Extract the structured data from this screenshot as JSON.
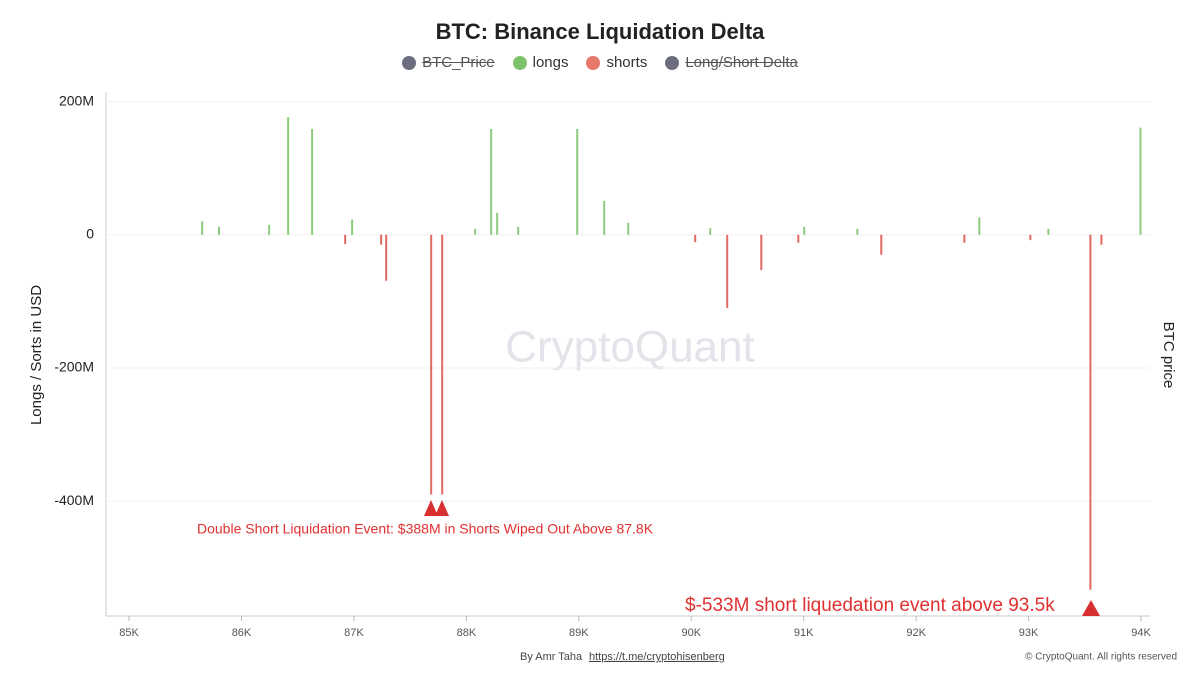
{
  "chart_data": {
    "type": "bar",
    "title": "BTC: Binance Liquidation Delta",
    "y_label": "Longs / Sorts in USD",
    "y2_label": "BTC price",
    "watermark": "CryptoQuant",
    "legend": [
      {
        "name": "BTC_Price",
        "color": "#6c6e80",
        "hidden": true
      },
      {
        "name": "longs",
        "color": "#7dc36b",
        "hidden": false
      },
      {
        "name": "shorts",
        "color": "#e8776c",
        "hidden": false
      },
      {
        "name": "Long/Short Delta",
        "color": "#6c6e80",
        "hidden": true
      }
    ],
    "series": [
      {
        "name": "longs",
        "color": "#8ccb7c",
        "x": [
          86415,
          86628,
          88221,
          88986,
          93995,
          89226,
          88274,
          85650,
          86984,
          92562,
          89440,
          86246,
          85800,
          88461,
          91477,
          91005,
          93176,
          90169,
          88078
        ],
        "values": [
          177000000,
          159000000,
          159000000,
          159000000,
          161000000,
          51000000,
          33000000,
          20000000,
          23000000,
          26000000,
          18000000,
          15000000,
          12000000,
          12000000,
          9000000,
          12000000,
          9000000,
          10000000,
          9000000
        ]
      },
      {
        "name": "shorts",
        "color": "#e06b63",
        "x": [
          87687,
          87785,
          93550,
          87287,
          90320,
          90623,
          91690,
          86922,
          87242,
          93648,
          90035,
          90952,
          92429,
          93016
        ],
        "values": [
          -390000000,
          -390000000,
          -533000000,
          -69000000,
          -110000000,
          -53000000,
          -30000000,
          -14000000,
          -15000000,
          -15000000,
          -11000000,
          -12000000,
          -12000000,
          -8000000
        ]
      }
    ],
    "xlim": [
      84795,
      94080
    ],
    "xticks": [
      {
        "value": 85000,
        "label": "85K"
      },
      {
        "value": 86000,
        "label": "86K"
      },
      {
        "value": 87000,
        "label": "87K"
      },
      {
        "value": 88000,
        "label": "88K"
      },
      {
        "value": 89000,
        "label": "89K"
      },
      {
        "value": 90000,
        "label": "90K"
      },
      {
        "value": 91000,
        "label": "91K"
      },
      {
        "value": 92000,
        "label": "92K"
      },
      {
        "value": 93000,
        "label": "93K"
      },
      {
        "value": 94000,
        "label": "94K"
      }
    ],
    "ylim": [
      -571000000,
      210000000
    ],
    "yticks": [
      {
        "value": 200000000,
        "label": "200M"
      },
      0,
      {
        "value": -200000000,
        "label": "-200M"
      },
      {
        "value": -400000000,
        "label": "-400M"
      }
    ],
    "annotations": [
      "Double Short Liquidation Event: $388M in Shorts Wiped Out Above 87.8K",
      "$-533M short liquedation event above 93.5k"
    ],
    "footer": [
      "By Amr Taha",
      "https://t.me/cryptohisenberg",
      "© CryptoQuant. All rights reserved"
    ]
  }
}
